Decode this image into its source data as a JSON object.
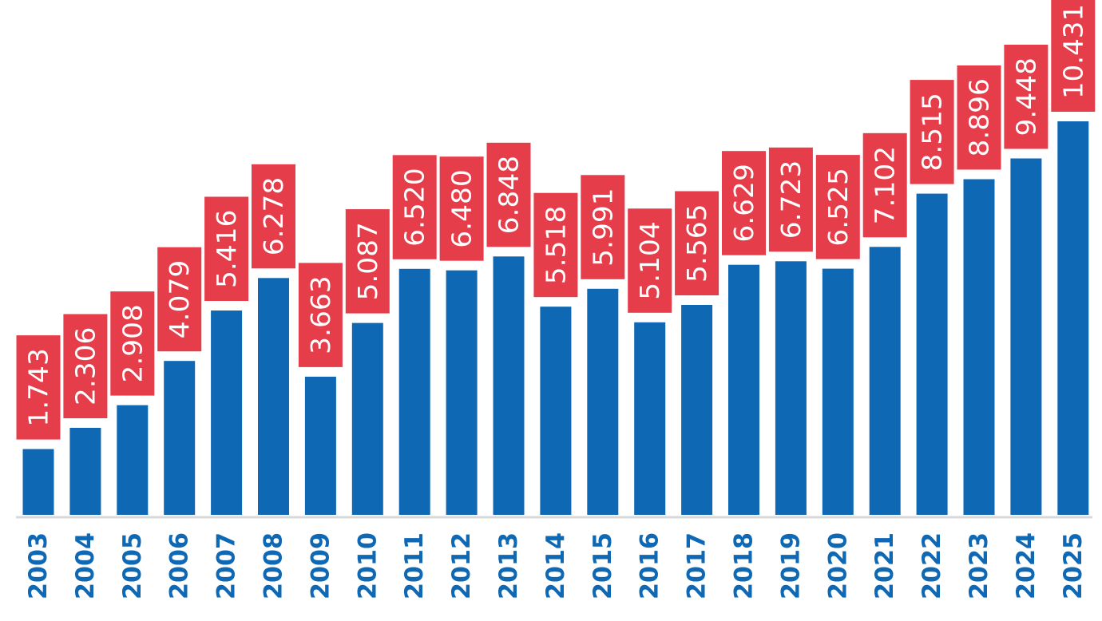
{
  "colors": {
    "bar": "#0f68b4",
    "label_background": "#e63d4a",
    "label_text": "#ffffff",
    "tick_label": "#0f68b4",
    "axis": "#d9d9d9",
    "background": "#ffffff"
  },
  "chart_data": {
    "type": "bar",
    "title": "",
    "xlabel": "",
    "ylabel": "",
    "grid": false,
    "legend": "none",
    "categories": [
      "2003",
      "2004",
      "2005",
      "2006",
      "2007",
      "2008",
      "2009",
      "2010",
      "2011",
      "2012",
      "2013",
      "2014",
      "2015",
      "2016",
      "2017",
      "2018",
      "2019",
      "2020",
      "2021",
      "2022",
      "2023",
      "2024",
      "2025"
    ],
    "values": [
      1.743,
      2.306,
      2.908,
      4.079,
      5.416,
      6.278,
      3.663,
      5.087,
      6.52,
      6.48,
      6.848,
      5.518,
      5.991,
      5.104,
      5.565,
      6.629,
      6.723,
      6.525,
      7.102,
      8.515,
      8.896,
      9.448,
      10.431
    ],
    "value_labels": [
      "1.743",
      "2.306",
      "2.908",
      "4.079",
      "5.416",
      "6.278",
      "3.663",
      "5.087",
      "6.520",
      "6.480",
      "6.848",
      "5.518",
      "5.991",
      "5.104",
      "5.565",
      "6.629",
      "6.723",
      "6.525",
      "7.102",
      "8.515",
      "8.896",
      "9.448",
      "10.431"
    ],
    "ylim": [
      0,
      10.431
    ]
  }
}
